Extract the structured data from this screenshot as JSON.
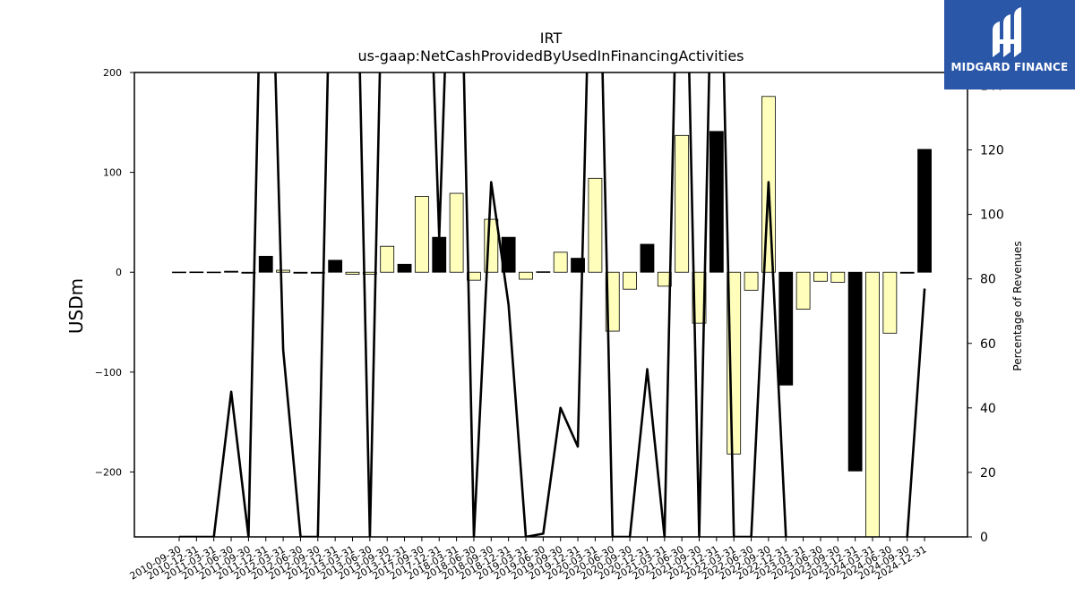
{
  "chart_data": {
    "type": "bar",
    "title": "IRT",
    "subtitle": "us-gaap:NetCashProvidedByUsedInFinancingActivities",
    "ylabel": "USDm",
    "y2label": "Percentage of Revenues",
    "ylim": [
      -265,
      200
    ],
    "y2lim": [
      0,
      144
    ],
    "yticks": [
      -200,
      -100,
      0,
      100,
      200
    ],
    "y2ticks": [
      0,
      20,
      40,
      60,
      80,
      100,
      120,
      140
    ],
    "categories": [
      "2010-09-30",
      "2010-12-31",
      "2011-03-31",
      "2011-06-30",
      "2011-09-30",
      "2011-12-31",
      "2012-03-31",
      "2012-06-30",
      "2012-09-30",
      "2012-12-31",
      "2013-03-31",
      "2013-06-30",
      "2013-09-30",
      "2013-12-31",
      "2017-09-30",
      "2017-12-31",
      "2018-03-31",
      "2018-06-30",
      "2018-09-30",
      "2018-12-31",
      "2019-03-31",
      "2019-06-30",
      "2019-09-30",
      "2019-12-31",
      "2020-03-31",
      "2020-06-30",
      "2020-09-30",
      "2020-12-31",
      "2021-03-31",
      "2021-06-30",
      "2021-09-30",
      "2021-12-31",
      "2022-03-31",
      "2022-06-30",
      "2022-09-30",
      "2022-12-31",
      "2023-03-31",
      "2023-06-30",
      "2023-09-30",
      "2023-12-31",
      "2024-03-31",
      "2024-06-30",
      "2024-09-30",
      "2024-12-31"
    ],
    "values": [
      0.2,
      0.3,
      0.2,
      1.0,
      -1.0,
      16,
      2,
      -1,
      -1,
      12,
      -2,
      -2,
      26,
      8,
      76,
      35,
      79,
      -8,
      53,
      35,
      -7,
      0.5,
      20,
      14,
      94,
      -59,
      -17,
      28,
      -14,
      137,
      -51,
      141,
      -182,
      -18,
      176,
      -113,
      -37,
      -9,
      -10,
      -199,
      -265,
      -61,
      -1,
      123
    ],
    "colors": [
      "#000000",
      "#000000",
      "#000000",
      "#000000",
      "#000000",
      "#000000",
      "#ffffbb",
      "#000000",
      "#000000",
      "#000000",
      "#ffffbb",
      "#ffffbb",
      "#ffffbb",
      "#000000",
      "#ffffbb",
      "#000000",
      "#ffffbb",
      "#ffffbb",
      "#ffffbb",
      "#000000",
      "#ffffbb",
      "#ffffbb",
      "#ffffbb",
      "#000000",
      "#ffffbb",
      "#ffffbb",
      "#ffffbb",
      "#000000",
      "#ffffbb",
      "#ffffbb",
      "#ffffbb",
      "#000000",
      "#ffffbb",
      "#ffffbb",
      "#ffffbb",
      "#000000",
      "#ffffbb",
      "#ffffbb",
      "#ffffbb",
      "#000000",
      "#ffffbb",
      "#ffffbb",
      "#000000",
      "#000000"
    ],
    "line_y2": [
      0,
      0,
      0,
      45,
      0,
      250,
      58,
      0,
      0,
      250,
      250,
      0,
      250,
      250,
      250,
      93,
      250,
      0,
      110,
      72,
      0,
      1,
      40,
      28,
      250,
      0,
      0,
      52,
      0,
      250,
      0,
      250,
      0,
      0,
      110,
      0,
      null,
      null,
      null,
      null,
      null,
      null,
      0,
      77
    ],
    "grid": false,
    "legend": "none"
  },
  "logo": {
    "text": "MIDGARD FINANCE"
  }
}
